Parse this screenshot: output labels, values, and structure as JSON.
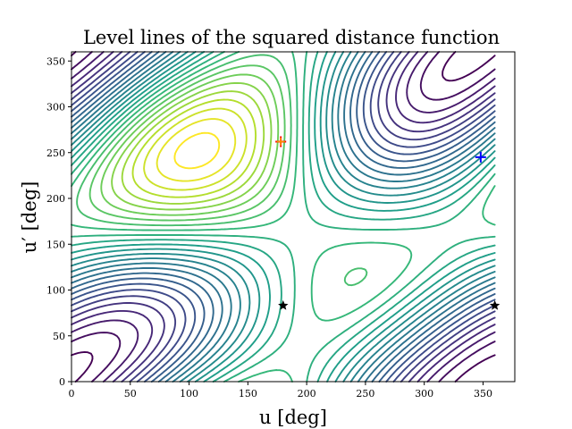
{
  "chart_data": {
    "type": "contour",
    "title": "Level lines of the squared distance function",
    "xlabel": "u [deg]",
    "ylabel": "u′ [deg]",
    "xlim": [
      0,
      377
    ],
    "ylim": [
      0,
      360
    ],
    "xticks": [
      0,
      50,
      100,
      150,
      200,
      250,
      300,
      350
    ],
    "yticks": [
      0,
      50,
      100,
      150,
      200,
      250,
      300,
      350
    ],
    "grid": false,
    "colormap": "viridis",
    "levels": 28,
    "data_domain": [
      0,
      360
    ],
    "markers": [
      {
        "name": "maximum",
        "u": 178,
        "v": 262,
        "symbol": "plus",
        "color": "#ff0000"
      },
      {
        "name": "maximum-overlay",
        "u": 178,
        "v": 262,
        "symbol": "plus",
        "color": "#ff8c00"
      },
      {
        "name": "minimum",
        "u": 348,
        "v": 245,
        "symbol": "plus",
        "color": "#0000ff"
      },
      {
        "name": "saddle-1",
        "u": 180,
        "v": 83,
        "symbol": "star",
        "color": "#000000"
      },
      {
        "name": "saddle-2",
        "u": 360,
        "v": 83,
        "symbol": "star",
        "color": "#000000"
      }
    ]
  }
}
